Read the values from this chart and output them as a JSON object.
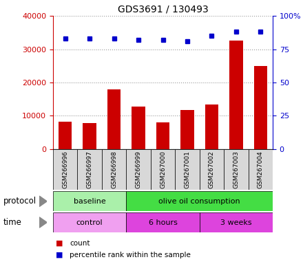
{
  "title": "GDS3691 / 130493",
  "samples": [
    "GSM266996",
    "GSM266997",
    "GSM266998",
    "GSM266999",
    "GSM267000",
    "GSM267001",
    "GSM267002",
    "GSM267003",
    "GSM267004"
  ],
  "counts": [
    8200,
    7800,
    18000,
    12800,
    8000,
    11800,
    13500,
    32500,
    25000
  ],
  "percentile_ranks": [
    83,
    83,
    83,
    82,
    82,
    81,
    85,
    88,
    88
  ],
  "bar_color": "#cc0000",
  "dot_color": "#0000cc",
  "left_ylim": [
    0,
    40000
  ],
  "left_yticks": [
    0,
    10000,
    20000,
    30000,
    40000
  ],
  "right_ylim": [
    0,
    100
  ],
  "right_yticks": [
    0,
    25,
    50,
    75,
    100
  ],
  "right_yticklabels": [
    "0",
    "25",
    "50",
    "75",
    "100%"
  ],
  "protocol_groups": [
    {
      "label": "baseline",
      "start": 0,
      "end": 3,
      "color": "#aaf0aa"
    },
    {
      "label": "olive oil consumption",
      "start": 3,
      "end": 9,
      "color": "#44dd44"
    }
  ],
  "time_groups": [
    {
      "label": "control",
      "start": 0,
      "end": 3,
      "color": "#f0a0f0"
    },
    {
      "label": "6 hours",
      "start": 3,
      "end": 6,
      "color": "#dd44dd"
    },
    {
      "label": "3 weeks",
      "start": 6,
      "end": 9,
      "color": "#dd44dd"
    }
  ],
  "legend_count_label": "count",
  "legend_percentile_label": "percentile rank within the sample",
  "protocol_label": "protocol",
  "time_label": "time",
  "grid_color": "#999999",
  "tick_label_color_left": "#cc0000",
  "tick_label_color_right": "#0000cc",
  "sample_box_color": "#d8d8d8",
  "fig_width": 4.4,
  "fig_height": 3.84,
  "dpi": 100
}
